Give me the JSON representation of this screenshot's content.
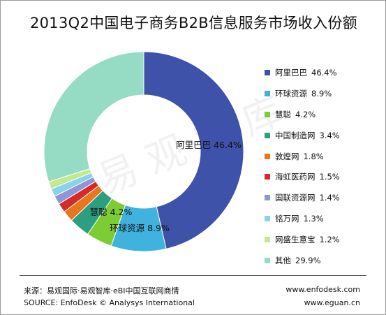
{
  "chart_data": {
    "type": "pie",
    "title": "2013Q2中国电子商务B2B信息服务市场收入份额",
    "unit": "%",
    "series": [
      {
        "name": "阿里巴巴",
        "value": 46.4,
        "label": "46.4%",
        "color": "#3d52a8"
      },
      {
        "name": "环球资源",
        "value": 8.9,
        "label": "8.9%",
        "color": "#3fb3de"
      },
      {
        "name": "慧聪",
        "value": 4.2,
        "label": "4.2%",
        "color": "#7dcc33"
      },
      {
        "name": "中国制造网",
        "value": 3.4,
        "label": "3.4%",
        "color": "#2e9e80"
      },
      {
        "name": "敦煌网",
        "value": 1.8,
        "label": "1.8%",
        "color": "#e8761e"
      },
      {
        "name": "海虹医药网",
        "value": 1.5,
        "label": "1.5%",
        "color": "#d52a2a"
      },
      {
        "name": "国联资源网",
        "value": 1.4,
        "label": "1.4%",
        "color": "#8d97d6"
      },
      {
        "name": "铭万网",
        "value": 1.3,
        "label": "1.3%",
        "color": "#88d2ee"
      },
      {
        "name": "网盛生意宝",
        "value": 1.2,
        "label": "1.2%",
        "color": "#c3e88f"
      },
      {
        "name": "其他",
        "value": 29.9,
        "label": "29.9%",
        "color": "#96dcc5"
      }
    ],
    "data_labels": [
      {
        "name": "阿里巴巴",
        "text": "46.4%"
      },
      {
        "name": "环球资源",
        "text": "8.9%"
      },
      {
        "name": "慧聪",
        "text": "4.2%"
      }
    ],
    "legend_position": "right"
  },
  "footer": {
    "source_cn": "来源：易观国际·易观智库·eBI中国互联网商情",
    "source_en": "SOURCE: EnfoDesk © Analysys International",
    "url_1": "www.enfodesk.com",
    "url_2": "www.eguan.cn"
  },
  "watermark": {
    "text": "易观智库"
  }
}
